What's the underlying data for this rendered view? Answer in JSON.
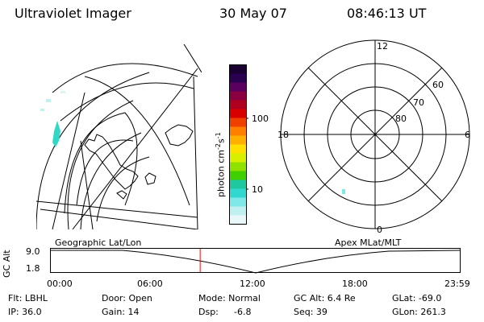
{
  "header": {
    "title": "Ultraviolet Imager",
    "date": "30 May 07",
    "time": "08:46:13 UT"
  },
  "colorbar": {
    "label": "photon cm",
    "exp1": "-2",
    "mid": "s",
    "exp2": "-1",
    "ticks": [
      "100",
      "10"
    ],
    "colors": [
      "#1a0033",
      "#2a0050",
      "#5a0060",
      "#8b0040",
      "#b00020",
      "#d80000",
      "#f04000",
      "#ff8000",
      "#ffb000",
      "#ffe000",
      "#d8f000",
      "#90e000",
      "#40d000",
      "#20c8a0",
      "#30d8d0",
      "#80e8e8",
      "#c0f0f0",
      "#e8f8f8"
    ]
  },
  "polar_plot": {
    "labels": {
      "top": "12",
      "bottom": "0",
      "left": "18",
      "right": "6"
    },
    "lat_labels": [
      "60",
      "70",
      "80"
    ]
  },
  "projection": {
    "left": "Geographic Lat/Lon",
    "right": "Apex  MLat/MLT"
  },
  "timeline": {
    "y_label": "GC Alt",
    "y_ticks": [
      "9.0",
      "1.8"
    ],
    "x_ticks": [
      "00:00",
      "06:00",
      "12:00",
      "18:00",
      "23:59"
    ],
    "current_time": "08:46:13",
    "marker_color": "#ff0000"
  },
  "status": {
    "row1": {
      "flt": "Flt: LBHL",
      "door": "Door: Open",
      "mode": "Mode: Normal",
      "gc_alt": "GC Alt: 6.4 Re",
      "glat": "GLat: -69.0"
    },
    "row2": {
      "ip": "IP: 36.0",
      "gain": "Gain: 14",
      "dsp_label": "Dsp:",
      "dsp_value": "-6.8",
      "seq": "Seq: 39",
      "glon": "GLon: 261.3"
    }
  }
}
